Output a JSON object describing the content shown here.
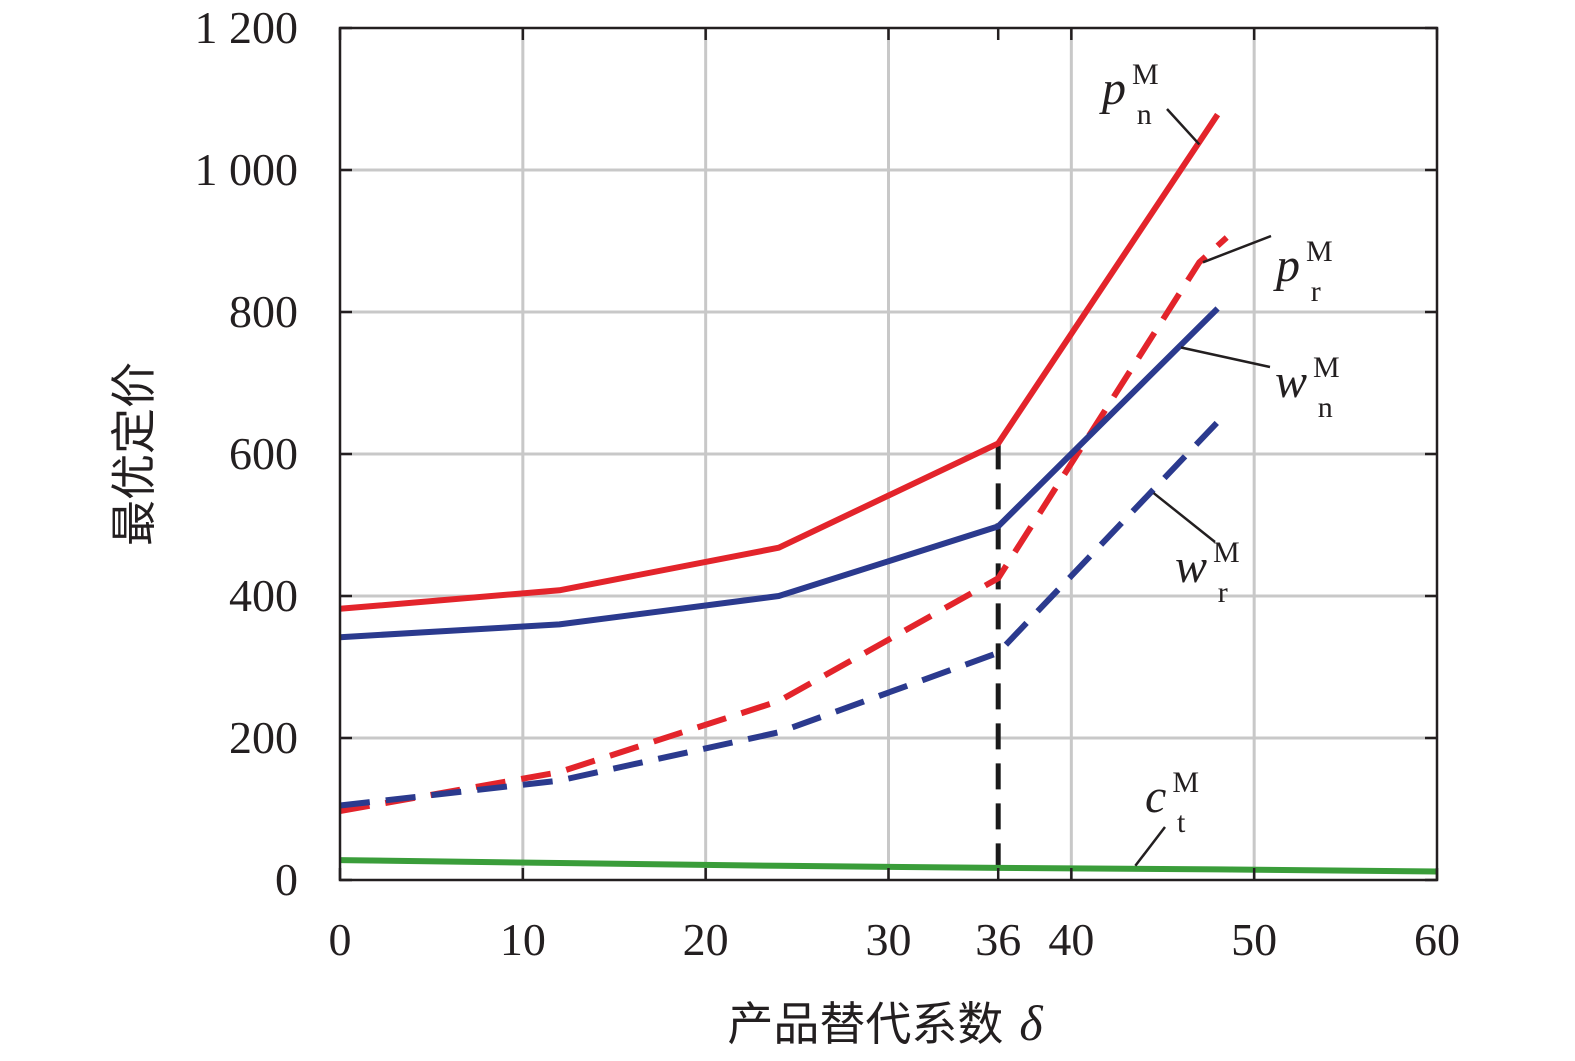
{
  "chart_data": {
    "type": "line",
    "title": "",
    "xlabel": "产品替代系数",
    "xlabel_symbol": "δ",
    "ylabel": "最优定价",
    "xlim": [
      0,
      60
    ],
    "ylim": [
      0,
      1200
    ],
    "x_ticks": [
      {
        "value": 0,
        "label": "0"
      },
      {
        "value": 10,
        "label": "10"
      },
      {
        "value": 20,
        "label": "20"
      },
      {
        "value": 30,
        "label": "30"
      },
      {
        "value": 36,
        "label": "36"
      },
      {
        "value": 40,
        "label": "40"
      },
      {
        "value": 50,
        "label": "50"
      },
      {
        "value": 60,
        "label": "60"
      }
    ],
    "y_ticks": [
      {
        "value": 0,
        "label": "0"
      },
      {
        "value": 200,
        "label": "200"
      },
      {
        "value": 400,
        "label": "400"
      },
      {
        "value": 600,
        "label": "600"
      },
      {
        "value": 800,
        "label": "800"
      },
      {
        "value": 1000,
        "label": "1 000"
      },
      {
        "value": 1200,
        "label": "1 200"
      }
    ],
    "grid": true,
    "reference_line": {
      "x": 36,
      "y_from": 0,
      "y_to": 615,
      "color": "#1a1a1a",
      "style": "dashed"
    },
    "series": [
      {
        "name": "p",
        "sup": "M",
        "sub": "n",
        "color": "#e3242b",
        "style": "solid",
        "points": [
          [
            0,
            382
          ],
          [
            12,
            408
          ],
          [
            24,
            468
          ],
          [
            36,
            615
          ],
          [
            48,
            1078
          ]
        ],
        "label_anchor": [
          47,
          1036
        ]
      },
      {
        "name": "p",
        "sup": "M",
        "sub": "r",
        "color": "#e3242b",
        "style": "dashed",
        "points": [
          [
            0,
            97
          ],
          [
            12,
            152
          ],
          [
            24,
            252
          ],
          [
            36,
            425
          ],
          [
            47,
            870
          ],
          [
            48.5,
            905
          ]
        ],
        "label_anchor": [
          47.2,
          870
        ]
      },
      {
        "name": "w",
        "sup": "M",
        "sub": "n",
        "color": "#2b3a8e",
        "style": "solid",
        "points": [
          [
            0,
            342
          ],
          [
            12,
            360
          ],
          [
            24,
            400
          ],
          [
            36,
            498
          ],
          [
            48,
            805
          ]
        ],
        "label_anchor": [
          46,
          750
        ]
      },
      {
        "name": "w",
        "sup": "M",
        "sub": "r",
        "color": "#2b3a8e",
        "style": "dashed",
        "points": [
          [
            0,
            105
          ],
          [
            12,
            140
          ],
          [
            24,
            208
          ],
          [
            36,
            320
          ],
          [
            48,
            645
          ]
        ],
        "label_anchor": [
          44.5,
          545
        ]
      },
      {
        "name": "c",
        "sup": "M",
        "sub": "t",
        "color": "#3a9d3a",
        "style": "solid",
        "points": [
          [
            0,
            28
          ],
          [
            12,
            24
          ],
          [
            24,
            20
          ],
          [
            36,
            17
          ],
          [
            48,
            15
          ],
          [
            60,
            12
          ]
        ],
        "label_anchor": [
          43.5,
          20
        ]
      }
    ]
  }
}
